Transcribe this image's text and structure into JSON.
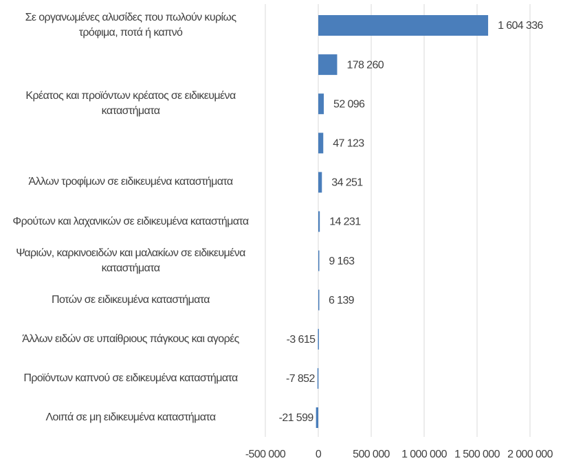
{
  "chart_data": {
    "type": "bar",
    "orientation": "horizontal",
    "categories": [
      "Σε οργανωμένες αλυσίδες που πωλούν κυρίως τρόφιμα, ποτά ή καπνό",
      null,
      "Κρέατος και προϊόντων κρέατος σε ειδικευμένα καταστήματα",
      null,
      "Άλλων τροφίμων σε ειδικευμένα καταστήματα",
      "Φρούτων και λαχανικών σε ειδικευμένα καταστήματα",
      "Ψαριών, καρκινοειδών και μαλακίων σε ειδικευμένα καταστήματα",
      "Ποτών σε ειδικευμένα καταστήματα",
      "Άλλων ειδών σε υπαίθριους πάγκους και αγορές",
      "Προϊόντων καπνού σε ειδικευμένα καταστήματα",
      "Λοιπά σε μη ειδικευμένα καταστήματα"
    ],
    "values": [
      1604336,
      178260,
      52096,
      47123,
      34251,
      14231,
      9163,
      6139,
      -3615,
      -7852,
      -21599
    ],
    "value_labels": [
      "1 604 336",
      "178 260",
      "52 096",
      "47 123",
      "34 251",
      "14 231",
      "9 163",
      "6 139",
      "-3 615",
      "-7 852",
      "-21 599"
    ],
    "color": "#4a7ebb",
    "xlim": [
      -500000,
      2000000
    ],
    "xticks": [
      {
        "value": -500000,
        "label": "-500 000"
      },
      0,
      {
        "value": 500000,
        "label": "500 000"
      },
      {
        "value": 1000000,
        "label": "1 000 000"
      },
      {
        "value": 1500000,
        "label": "1 500 000"
      },
      {
        "value": 2000000,
        "label": "2 000 000"
      }
    ],
    "grid": true
  }
}
